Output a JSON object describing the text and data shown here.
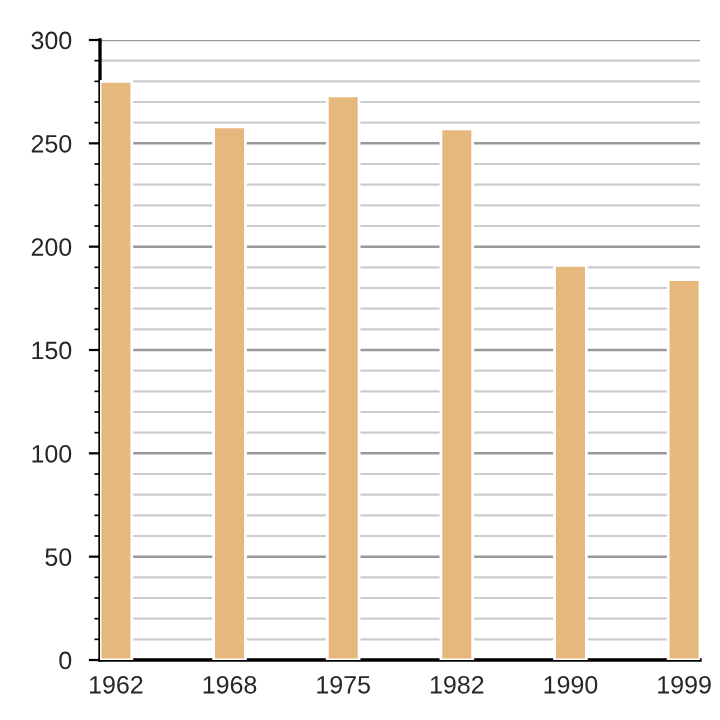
{
  "chart_data": {
    "type": "bar",
    "categories": [
      "1962",
      "1968",
      "1975",
      "1982",
      "1990",
      "1999"
    ],
    "values": [
      280,
      258,
      273,
      257,
      191,
      184
    ],
    "color": "#e6b87e",
    "ylim": [
      0,
      300
    ],
    "yticks": [
      0,
      50,
      100,
      150,
      200,
      250,
      300
    ],
    "grid": "y"
  }
}
